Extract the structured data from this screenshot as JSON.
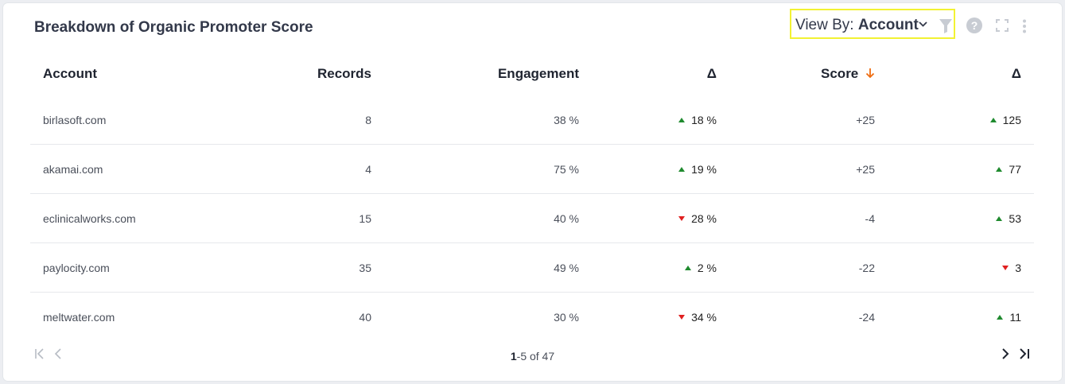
{
  "widget": {
    "title": "Breakdown of Organic Promoter Score",
    "view_by_label": "View By:",
    "view_by_value": "Account"
  },
  "table": {
    "columns": {
      "account": "Account",
      "records": "Records",
      "engagement": "Engagement",
      "delta1": "Δ",
      "score": "Score",
      "delta2": "Δ"
    },
    "rows": [
      {
        "account": "birlasoft.com",
        "records": "8",
        "engagement": "38 %",
        "delta1": "18 %",
        "delta1_dir": "up",
        "score": "+25",
        "delta2": "125",
        "delta2_dir": "up"
      },
      {
        "account": "akamai.com",
        "records": "4",
        "engagement": "75 %",
        "delta1": "19 %",
        "delta1_dir": "up",
        "score": "+25",
        "delta2": "77",
        "delta2_dir": "up"
      },
      {
        "account": "eclinicalworks.com",
        "records": "15",
        "engagement": "40 %",
        "delta1": "28 %",
        "delta1_dir": "down",
        "score": "-4",
        "delta2": "53",
        "delta2_dir": "up"
      },
      {
        "account": "paylocity.com",
        "records": "35",
        "engagement": "49 %",
        "delta1": "2 %",
        "delta1_dir": "up",
        "score": "-22",
        "delta2": "3",
        "delta2_dir": "down"
      },
      {
        "account": "meltwater.com",
        "records": "40",
        "engagement": "30 %",
        "delta1": "34 %",
        "delta1_dir": "down",
        "score": "-24",
        "delta2": "11",
        "delta2_dir": "up"
      }
    ]
  },
  "pagination": {
    "range_start": "1",
    "range_rest": "-5 of 47"
  },
  "colors": {
    "up": "#1f8a2e",
    "down": "#e02020",
    "sort_accent": "#ef6c10",
    "highlight": "#f2f233"
  },
  "icons": [
    "chevron-down-icon",
    "filter-icon",
    "help-icon",
    "fullscreen-icon",
    "more-vertical-icon",
    "first-page-icon",
    "previous-page-icon",
    "next-page-icon",
    "last-page-icon",
    "sort-desc-icon",
    "trend-up-icon",
    "trend-down-icon"
  ]
}
